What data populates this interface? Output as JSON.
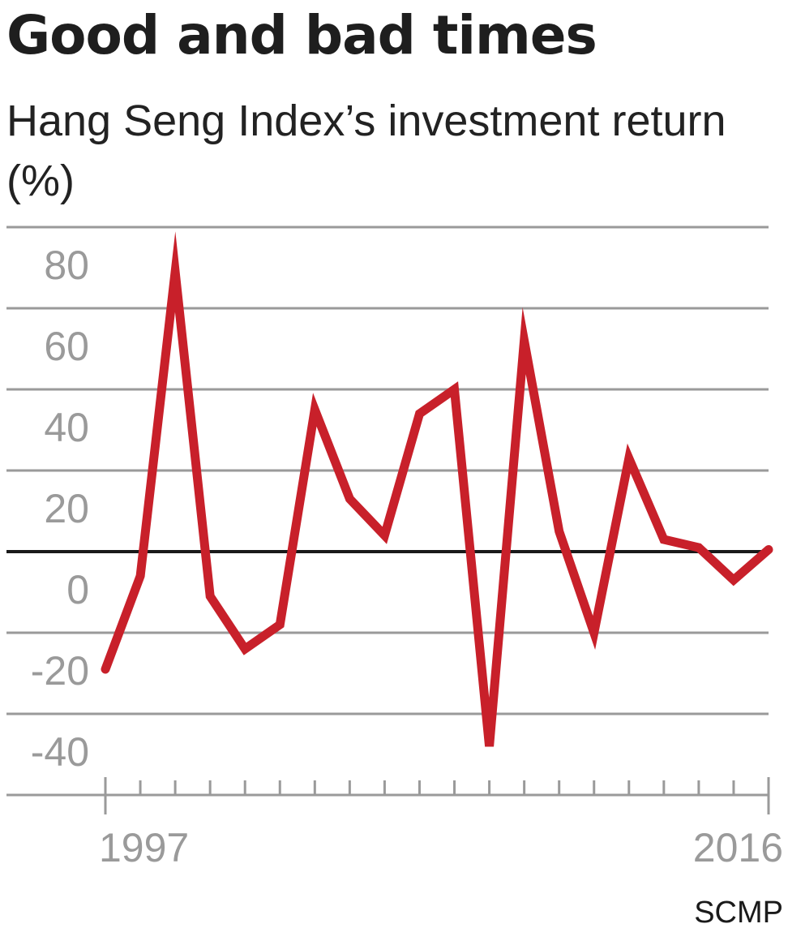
{
  "title": "Good and bad times",
  "subtitle": "Hang Seng Index’s investment return (%)",
  "source": "SCMP",
  "chart_data": {
    "type": "line",
    "title": "Good and bad times",
    "subtitle": "Hang Seng Index’s investment return (%)",
    "xlabel": "",
    "ylabel": "",
    "x": [
      1997,
      1998,
      1999,
      2000,
      2001,
      2002,
      2003,
      2004,
      2005,
      2006,
      2007,
      2008,
      2009,
      2010,
      2011,
      2012,
      2013,
      2014,
      2015,
      2016
    ],
    "x_tick_labels": [
      "1997",
      "2016"
    ],
    "y_ticks": [
      80,
      60,
      40,
      20,
      0,
      -20,
      -40
    ],
    "y_tick_labels": [
      "80",
      "60",
      "40",
      "20",
      "0",
      "-20",
      "-40"
    ],
    "ylim": [
      -60,
      80
    ],
    "zero_line": true,
    "grid": true,
    "series": [
      {
        "values": [
          -29,
          -6,
          69,
          -11,
          -24,
          -18,
          35,
          13,
          4,
          34,
          40,
          -48,
          52,
          5,
          -20,
          23,
          3,
          1,
          -7,
          0.5
        ]
      }
    ],
    "colors": {
      "line": "#c8202a",
      "grid": "#9a9a9a",
      "zero": "#1a1a1a",
      "axis": "#9a9a9a",
      "tick_text": "#9a9a9a"
    }
  }
}
